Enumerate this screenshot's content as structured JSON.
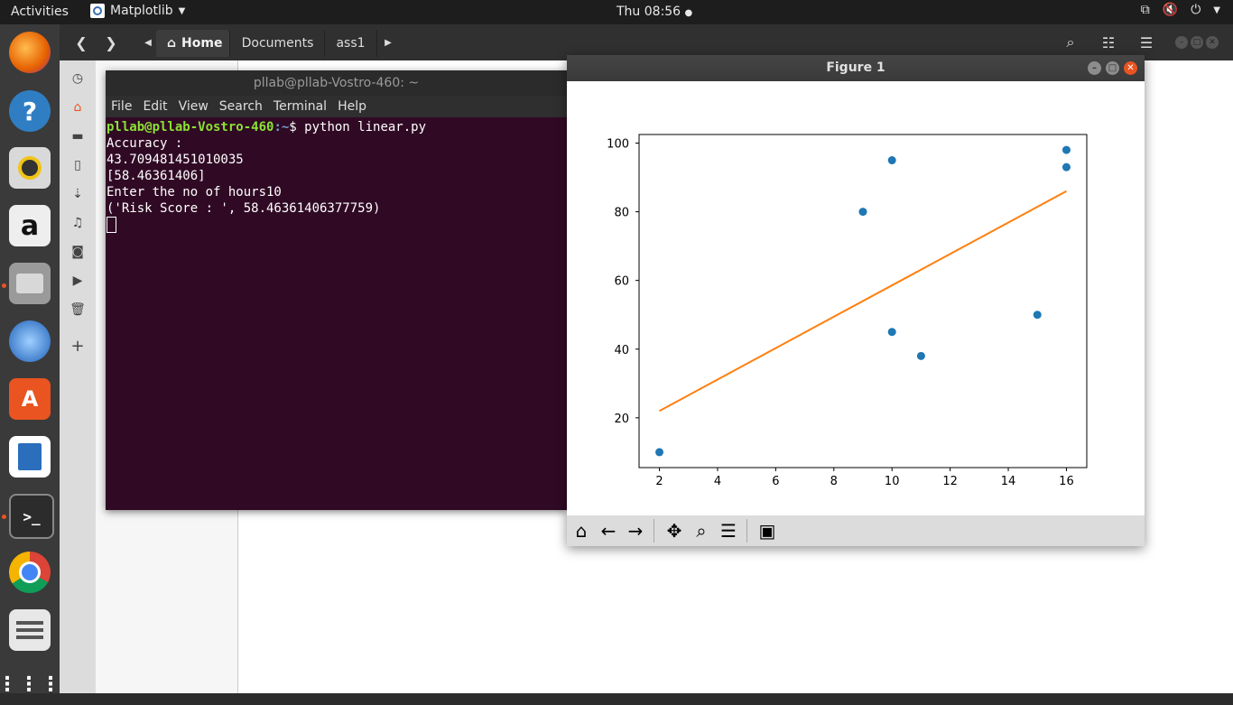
{
  "topbar": {
    "activities": "Activities",
    "app_name": "Matplotlib",
    "clock": "Thu 08:56"
  },
  "dock": {
    "items": [
      "firefox-icon",
      "help-icon",
      "rhythmbox-icon",
      "amazon-icon",
      "files-icon",
      "thunderbird-icon",
      "software-icon",
      "writer-icon",
      "terminal-icon",
      "chrome-icon",
      "text-editor-icon",
      "app-grid-icon"
    ]
  },
  "file_manager": {
    "breadcrumbs": [
      "Home",
      "Documents",
      "ass1"
    ]
  },
  "terminal": {
    "title": "pllab@pllab-Vostro-460: ~",
    "menu": [
      "File",
      "Edit",
      "View",
      "Search",
      "Terminal",
      "Help"
    ],
    "prompt_user": "pllab@pllab-Vostro-460",
    "prompt_path": ":~",
    "prompt_sym": "$ ",
    "command": "python linear.py",
    "output": [
      "Accuracy :",
      "43.709481451010035",
      "[58.46361406]",
      "Enter the no of hours10",
      "('Risk Score : ', 58.46361406377759)"
    ]
  },
  "figure": {
    "title": "Figure 1",
    "toolbar": [
      "home-icon",
      "back-icon",
      "forward-icon",
      "pan-icon",
      "zoom-icon",
      "configure-icon",
      "save-icon"
    ]
  },
  "chart_data": {
    "type": "scatter",
    "xlim": [
      1.3,
      16.7
    ],
    "ylim": [
      5.5,
      102.5
    ],
    "xticks": [
      2,
      4,
      6,
      8,
      10,
      12,
      14,
      16
    ],
    "yticks": [
      20,
      40,
      60,
      80,
      100
    ],
    "scatter_color": "#1f77b4",
    "line_color": "#ff7f0e",
    "points": [
      [
        2,
        10
      ],
      [
        9,
        80
      ],
      [
        10,
        95
      ],
      [
        10,
        45
      ],
      [
        11,
        38
      ],
      [
        15,
        50
      ],
      [
        16,
        98
      ],
      [
        16,
        93
      ]
    ],
    "fit_line": [
      [
        2,
        22
      ],
      [
        16,
        86
      ]
    ],
    "grid": false
  }
}
